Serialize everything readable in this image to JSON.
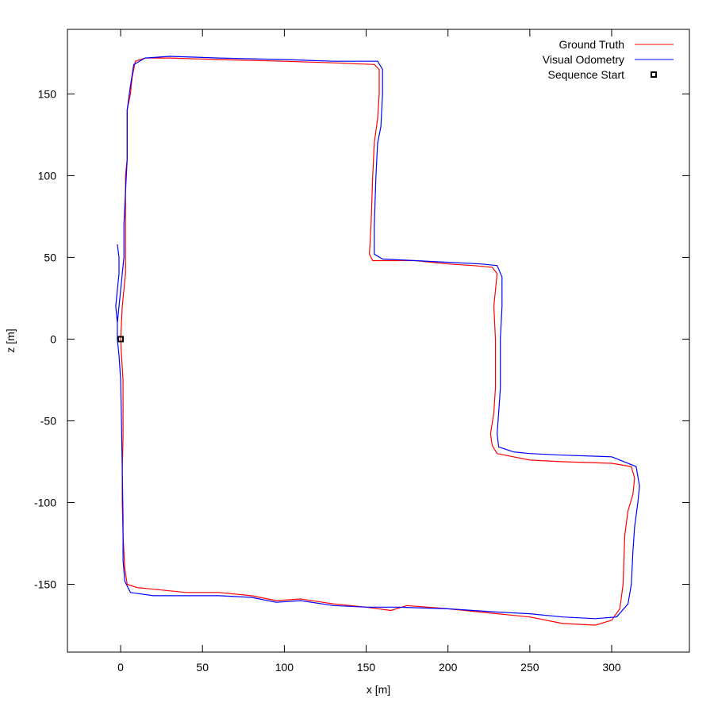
{
  "chart_data": {
    "type": "line",
    "xlabel": "x [m]",
    "ylabel": "z [m]",
    "xlim": [
      -32.5,
      347.5
    ],
    "ylim": [
      -191.5,
      189.5
    ],
    "x_ticks": [
      0,
      50,
      100,
      150,
      200,
      250,
      300
    ],
    "y_ticks": [
      -150,
      -100,
      -50,
      0,
      50,
      100,
      150
    ],
    "x_tick_labels": [
      "0",
      "50",
      "100",
      "150",
      "200",
      "250",
      "300"
    ],
    "y_tick_labels": [
      "-150",
      "-100",
      "-50",
      "0",
      "50",
      "100",
      "150"
    ],
    "grid": false,
    "legend_position": "top-right",
    "series": [
      {
        "name": "Ground Truth",
        "color": "#ff0000",
        "points": [
          [
            0,
            0
          ],
          [
            0.5,
            -10
          ],
          [
            1.5,
            -25
          ],
          [
            1.5,
            -40
          ],
          [
            1.5,
            -60
          ],
          [
            1,
            -80
          ],
          [
            1,
            -100
          ],
          [
            1.5,
            -120
          ],
          [
            2.5,
            -140
          ],
          [
            4,
            -150
          ],
          [
            10,
            -152
          ],
          [
            20,
            -153
          ],
          [
            40,
            -155
          ],
          [
            60,
            -155
          ],
          [
            80,
            -157
          ],
          [
            95,
            -160
          ],
          [
            110,
            -159
          ],
          [
            130,
            -162
          ],
          [
            150,
            -164
          ],
          [
            165,
            -166
          ],
          [
            175,
            -163
          ],
          [
            200,
            -165
          ],
          [
            230,
            -168
          ],
          [
            250,
            -170
          ],
          [
            270,
            -174
          ],
          [
            290,
            -175
          ],
          [
            300,
            -172
          ],
          [
            305,
            -165
          ],
          [
            307,
            -150
          ],
          [
            308,
            -120
          ],
          [
            310,
            -105
          ],
          [
            313,
            -95
          ],
          [
            314,
            -85
          ],
          [
            312,
            -78
          ],
          [
            300,
            -76
          ],
          [
            270,
            -75
          ],
          [
            250,
            -74
          ],
          [
            240,
            -72
          ],
          [
            230,
            -70
          ],
          [
            227,
            -65
          ],
          [
            226,
            -58
          ],
          [
            228,
            -45
          ],
          [
            229,
            -30
          ],
          [
            229,
            -10
          ],
          [
            229,
            0
          ],
          [
            228,
            20
          ],
          [
            230,
            40
          ],
          [
            227,
            44
          ],
          [
            215,
            45
          ],
          [
            200,
            46
          ],
          [
            180,
            48
          ],
          [
            160,
            48
          ],
          [
            154,
            48
          ],
          [
            152,
            52
          ],
          [
            153,
            70
          ],
          [
            154,
            100
          ],
          [
            155,
            120
          ],
          [
            157,
            135
          ],
          [
            158,
            150
          ],
          [
            158,
            165
          ],
          [
            155,
            168
          ],
          [
            130,
            169
          ],
          [
            100,
            170
          ],
          [
            60,
            171
          ],
          [
            30,
            172
          ],
          [
            15,
            172
          ],
          [
            9,
            170
          ],
          [
            7,
            160
          ],
          [
            6,
            150
          ],
          [
            4,
            140
          ],
          [
            4,
            110
          ],
          [
            3,
            100
          ],
          [
            3,
            80
          ],
          [
            3,
            60
          ],
          [
            3,
            40
          ],
          [
            1,
            20
          ],
          [
            0,
            0
          ]
        ]
      },
      {
        "name": "Visual Odometry",
        "color": "#0000ff",
        "points": [
          [
            -2,
            58
          ],
          [
            -1,
            50
          ],
          [
            -1,
            40
          ],
          [
            -2,
            30
          ],
          [
            -3,
            20
          ],
          [
            -2,
            10
          ],
          [
            -2,
            0
          ],
          [
            -1,
            -10
          ],
          [
            0,
            -25
          ],
          [
            0.5,
            -50
          ],
          [
            1,
            -80
          ],
          [
            1.5,
            -110
          ],
          [
            1.5,
            -135
          ],
          [
            2.5,
            -148
          ],
          [
            6,
            -155
          ],
          [
            20,
            -157
          ],
          [
            40,
            -157
          ],
          [
            60,
            -157
          ],
          [
            80,
            -158
          ],
          [
            95,
            -161
          ],
          [
            110,
            -160
          ],
          [
            130,
            -163
          ],
          [
            150,
            -164
          ],
          [
            170,
            -164
          ],
          [
            200,
            -165
          ],
          [
            230,
            -167
          ],
          [
            250,
            -168
          ],
          [
            270,
            -170
          ],
          [
            290,
            -171
          ],
          [
            303,
            -170
          ],
          [
            310,
            -162
          ],
          [
            312,
            -150
          ],
          [
            313,
            -130
          ],
          [
            314,
            -115
          ],
          [
            316,
            -100
          ],
          [
            317,
            -90
          ],
          [
            315,
            -78
          ],
          [
            300,
            -72
          ],
          [
            270,
            -71
          ],
          [
            250,
            -70
          ],
          [
            240,
            -69
          ],
          [
            231,
            -66
          ],
          [
            230,
            -58
          ],
          [
            231,
            -45
          ],
          [
            232,
            -30
          ],
          [
            232,
            -10
          ],
          [
            232,
            0
          ],
          [
            233,
            20
          ],
          [
            233,
            38
          ],
          [
            230,
            45
          ],
          [
            220,
            46
          ],
          [
            200,
            47
          ],
          [
            180,
            48
          ],
          [
            160,
            49
          ],
          [
            155,
            52
          ],
          [
            155,
            70
          ],
          [
            156,
            100
          ],
          [
            157,
            120
          ],
          [
            159,
            130
          ],
          [
            160,
            150
          ],
          [
            160,
            165
          ],
          [
            157,
            170
          ],
          [
            130,
            170
          ],
          [
            100,
            171
          ],
          [
            60,
            172
          ],
          [
            30,
            173
          ],
          [
            15,
            172
          ],
          [
            8,
            168
          ],
          [
            6,
            155
          ],
          [
            4,
            140
          ],
          [
            4,
            110
          ],
          [
            3,
            90
          ],
          [
            2,
            70
          ],
          [
            2,
            50
          ],
          [
            1,
            40
          ],
          [
            0,
            30
          ],
          [
            -1,
            20
          ],
          [
            -2,
            10
          ],
          [
            -2,
            0
          ]
        ]
      },
      {
        "name": "Sequence Start",
        "color": "#000000",
        "marker": "square",
        "points": [
          [
            0,
            0
          ]
        ]
      }
    ]
  }
}
